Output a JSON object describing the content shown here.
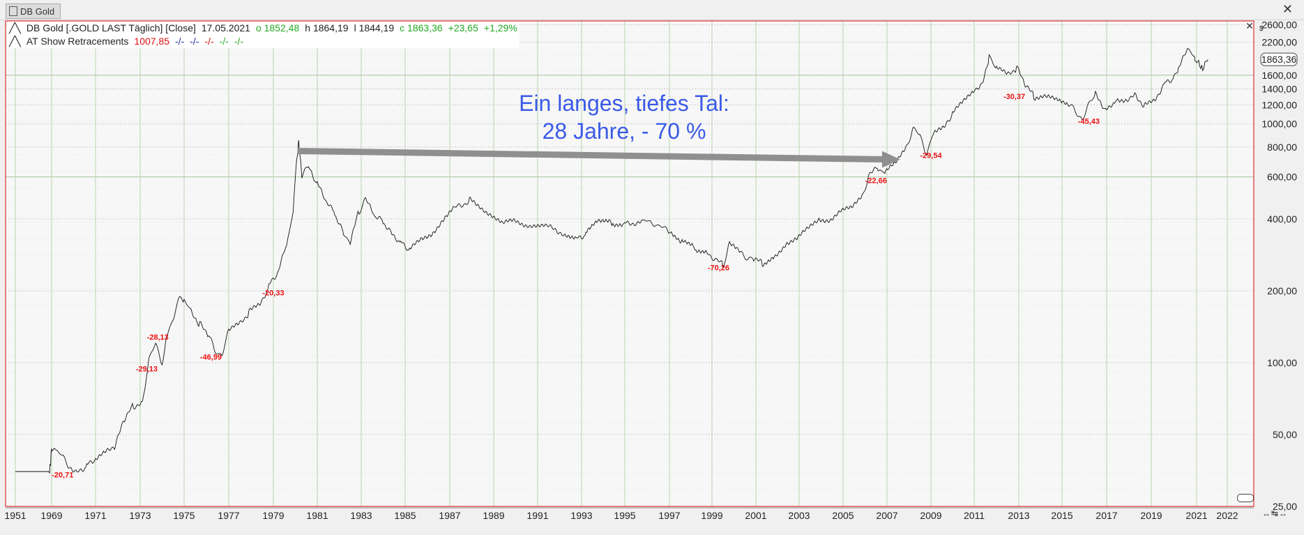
{
  "window": {
    "tab_label": "DB Gold",
    "close_glyph": "✕"
  },
  "legend": {
    "line1": {
      "name": "DB Gold [.GOLD LAST Täglich] [Close]",
      "date": "17.05.2021",
      "open": "o 1852,48",
      "high": "h 1864,19",
      "low": "l 1844,19",
      "close": "c 1863,36",
      "change": "+23,65",
      "change_pct": "+1,29%"
    },
    "line2": {
      "name": "AT Show Retracements",
      "value": "1007,85",
      "tags": [
        "-/-",
        "-/-",
        "-/-",
        "-/-",
        "-/-"
      ]
    }
  },
  "annotation": {
    "line1": "Ein langes, tiefes Tal:",
    "line2": "28 Jahre, - 70 %"
  },
  "axis_unit": "$",
  "panel_close": "✕",
  "nav_glyphs": "↔↹↔",
  "colors": {
    "price_line": "#111111",
    "border": "#e03030",
    "label": "#ee1111",
    "annotation": "#3a5ae6",
    "arrow": "#8f8f8f"
  },
  "chart_data": {
    "type": "line",
    "title": "DB Gold [.GOLD LAST Täglich] [Close]",
    "y_scale": "log",
    "ylim": [
      25,
      2700
    ],
    "xlim": [
      1951,
      2023
    ],
    "y_ticks": [
      {
        "v": 25,
        "label": "25,00"
      },
      {
        "v": 50,
        "label": "50,00"
      },
      {
        "v": 100,
        "label": "100,00"
      },
      {
        "v": 200,
        "label": "200,00"
      },
      {
        "v": 400,
        "label": "400,00"
      },
      {
        "v": 600,
        "label": "600,00"
      },
      {
        "v": 800,
        "label": "800,00"
      },
      {
        "v": 1000,
        "label": "1000,00"
      },
      {
        "v": 1200,
        "label": "1200,00"
      },
      {
        "v": 1400,
        "label": "1400,00"
      },
      {
        "v": 1600,
        "label": "1600,00"
      },
      {
        "v": 2200,
        "label": "2200,00"
      },
      {
        "v": 2600,
        "label": "2600,00"
      }
    ],
    "x_ticks": [
      {
        "v": 1951,
        "label": "1951"
      },
      {
        "v": 1969,
        "label": "1969"
      },
      {
        "v": 1971,
        "label": "1971"
      },
      {
        "v": 1973,
        "label": "1973"
      },
      {
        "v": 1975,
        "label": "1975"
      },
      {
        "v": 1977,
        "label": "1977"
      },
      {
        "v": 1979,
        "label": "1979"
      },
      {
        "v": 1981,
        "label": "1981"
      },
      {
        "v": 1983,
        "label": "1983"
      },
      {
        "v": 1985,
        "label": "1985"
      },
      {
        "v": 1987,
        "label": "1987"
      },
      {
        "v": 1989,
        "label": "1989"
      },
      {
        "v": 1991,
        "label": "1991"
      },
      {
        "v": 1993,
        "label": "1993"
      },
      {
        "v": 1995,
        "label": "1995"
      },
      {
        "v": 1997,
        "label": "1997"
      },
      {
        "v": 1999,
        "label": "1999"
      },
      {
        "v": 2001,
        "label": "2001"
      },
      {
        "v": 2003,
        "label": "2003"
      },
      {
        "v": 2005,
        "label": "2005"
      },
      {
        "v": 2007,
        "label": "2007"
      },
      {
        "v": 2009,
        "label": "2009"
      },
      {
        "v": 2011,
        "label": "2011"
      },
      {
        "v": 2013,
        "label": "2013"
      },
      {
        "v": 2015,
        "label": "2015"
      },
      {
        "v": 2017,
        "label": "2017"
      },
      {
        "v": 2019,
        "label": "2019"
      },
      {
        "v": 2021,
        "label": "2021"
      },
      {
        "v": 2022,
        "label": "2022"
      }
    ],
    "current_price": {
      "v": 1863.36,
      "label": "1863,36"
    },
    "highlight_lines": [
      600,
      1600
    ],
    "series": [
      {
        "points": [
          [
            1951,
            35
          ],
          [
            1968,
            35
          ],
          [
            1968.5,
            38
          ],
          [
            1968.8,
            42
          ],
          [
            1969.2,
            43
          ],
          [
            1969.5,
            40
          ],
          [
            1969.8,
            37
          ],
          [
            1970.2,
            35
          ],
          [
            1970.6,
            37
          ],
          [
            1971,
            39
          ],
          [
            1971.5,
            42
          ],
          [
            1971.9,
            45
          ],
          [
            1972.3,
            58
          ],
          [
            1972.7,
            66
          ],
          [
            1973.1,
            68
          ],
          [
            1973.4,
            105
          ],
          [
            1973.7,
            118
          ],
          [
            1974.0,
            100
          ],
          [
            1974.2,
            130
          ],
          [
            1974.5,
            155
          ],
          [
            1974.8,
            185
          ],
          [
            1975.0,
            180
          ],
          [
            1975.3,
            165
          ],
          [
            1975.7,
            145
          ],
          [
            1976.1,
            130
          ],
          [
            1976.4,
            110
          ],
          [
            1976.7,
            110
          ],
          [
            1977.0,
            135
          ],
          [
            1977.5,
            145
          ],
          [
            1977.9,
            162
          ],
          [
            1978.4,
            175
          ],
          [
            1978.8,
            210
          ],
          [
            1979.2,
            235
          ],
          [
            1979.6,
            310
          ],
          [
            1979.9,
            420
          ],
          [
            1980.05,
            700
          ],
          [
            1980.15,
            830
          ],
          [
            1980.3,
            600
          ],
          [
            1980.6,
            660
          ],
          [
            1981.0,
            560
          ],
          [
            1981.4,
            470
          ],
          [
            1981.8,
            420
          ],
          [
            1982.2,
            350
          ],
          [
            1982.5,
            320
          ],
          [
            1982.9,
            430
          ],
          [
            1983.2,
            480
          ],
          [
            1983.6,
            410
          ],
          [
            1984.0,
            390
          ],
          [
            1984.4,
            350
          ],
          [
            1984.8,
            320
          ],
          [
            1985.2,
            295
          ],
          [
            1985.7,
            325
          ],
          [
            1986.2,
            350
          ],
          [
            1986.7,
            400
          ],
          [
            1987.2,
            440
          ],
          [
            1987.9,
            480
          ],
          [
            1988.4,
            450
          ],
          [
            1988.9,
            420
          ],
          [
            1989.4,
            380
          ],
          [
            1989.9,
            390
          ],
          [
            1990.4,
            380
          ],
          [
            1990.9,
            380
          ],
          [
            1991.4,
            370
          ],
          [
            1992.2,
            350
          ],
          [
            1992.8,
            335
          ],
          [
            1993.2,
            345
          ],
          [
            1993.8,
            395
          ],
          [
            1994.4,
            385
          ],
          [
            1995.0,
            385
          ],
          [
            1995.8,
            390
          ],
          [
            1996.4,
            385
          ],
          [
            1997.0,
            350
          ],
          [
            1997.6,
            320
          ],
          [
            1998.2,
            300
          ],
          [
            1998.8,
            290
          ],
          [
            1999.5,
            255
          ],
          [
            1999.8,
            315
          ],
          [
            2000.3,
            285
          ],
          [
            2000.9,
            270
          ],
          [
            2001.3,
            260
          ],
          [
            2001.9,
            280
          ],
          [
            2002.4,
            320
          ],
          [
            2002.9,
            330
          ],
          [
            2003.4,
            360
          ],
          [
            2003.9,
            400
          ],
          [
            2004.4,
            400
          ],
          [
            2004.9,
            430
          ],
          [
            2005.4,
            440
          ],
          [
            2005.9,
            510
          ],
          [
            2006.2,
            620
          ],
          [
            2006.6,
            650
          ],
          [
            2006.9,
            620
          ],
          [
            2007.4,
            680
          ],
          [
            2007.9,
            820
          ],
          [
            2008.2,
            960
          ],
          [
            2008.5,
            880
          ],
          [
            2008.8,
            760
          ],
          [
            2009.1,
            910
          ],
          [
            2009.6,
            950
          ],
          [
            2010.0,
            1100
          ],
          [
            2010.5,
            1230
          ],
          [
            2011.0,
            1400
          ],
          [
            2011.4,
            1500
          ],
          [
            2011.67,
            1900
          ],
          [
            2012.0,
            1700
          ],
          [
            2012.5,
            1600
          ],
          [
            2012.9,
            1720
          ],
          [
            2013.3,
            1450
          ],
          [
            2013.7,
            1300
          ],
          [
            2014.2,
            1300
          ],
          [
            2014.7,
            1250
          ],
          [
            2015.3,
            1200
          ],
          [
            2015.9,
            1060
          ],
          [
            2016.5,
            1340
          ],
          [
            2016.95,
            1150
          ],
          [
            2017.4,
            1260
          ],
          [
            2017.9,
            1280
          ],
          [
            2018.3,
            1330
          ],
          [
            2018.7,
            1190
          ],
          [
            2019.2,
            1290
          ],
          [
            2019.6,
            1500
          ],
          [
            2020.0,
            1560
          ],
          [
            2020.2,
            1680
          ],
          [
            2020.6,
            2060
          ],
          [
            2020.9,
            1880
          ],
          [
            2021.2,
            1720
          ],
          [
            2021.37,
            1863
          ]
        ]
      },
      {
        "name": "AT Show Retracements",
        "labels": [
          {
            "x": 1969.5,
            "y": 33,
            "text": "-20,71"
          },
          {
            "x": 1973.3,
            "y": 92,
            "text": "-29,13"
          },
          {
            "x": 1973.8,
            "y": 125,
            "text": "-28,13"
          },
          {
            "x": 1976.2,
            "y": 103,
            "text": "-46,99"
          },
          {
            "x": 1979.0,
            "y": 191,
            "text": "-20,33"
          },
          {
            "x": 1999.3,
            "y": 244,
            "text": "-70,26"
          },
          {
            "x": 2006.5,
            "y": 565,
            "text": "-22,66"
          },
          {
            "x": 2009.0,
            "y": 720,
            "text": "-29,54"
          },
          {
            "x": 2012.8,
            "y": 1270,
            "text": "-30,37"
          },
          {
            "x": 2016.2,
            "y": 1000,
            "text": "-45,43"
          }
        ]
      }
    ],
    "arrow": {
      "from": [
        1980.1,
        770
      ],
      "to": [
        2007.6,
        710
      ]
    }
  }
}
